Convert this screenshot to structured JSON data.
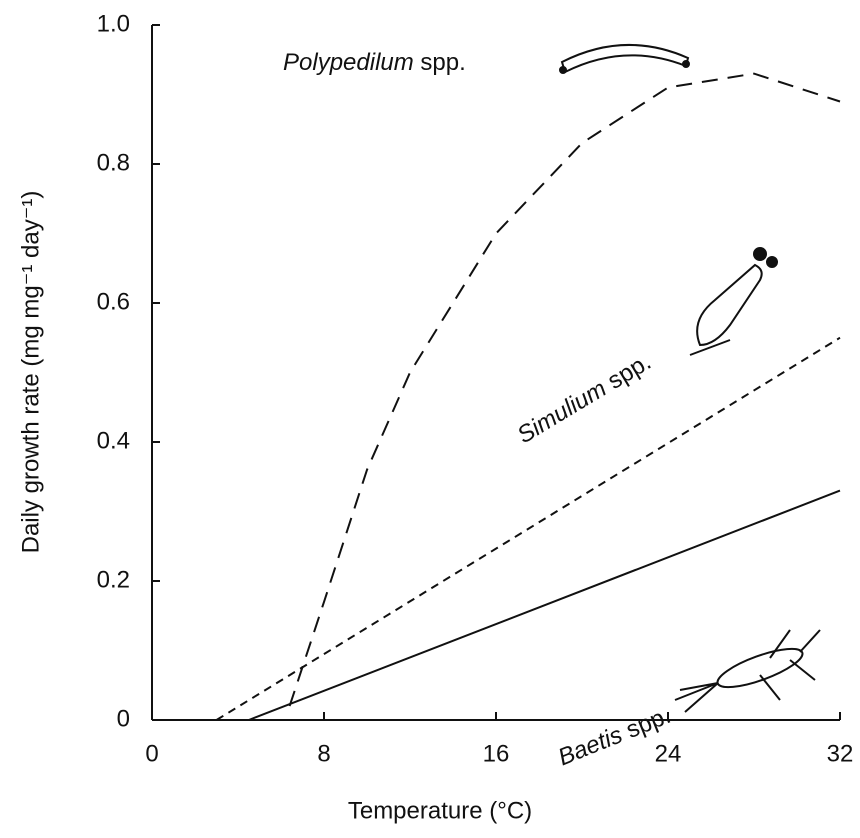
{
  "chart_data": {
    "type": "line",
    "xlabel": "Temperature (°C)",
    "ylabel": "Daily growth rate (mg mg⁻¹ day⁻¹)",
    "xlim": [
      0,
      32
    ],
    "xticks": [
      0,
      8,
      16,
      24,
      32
    ],
    "ylim": [
      0,
      1
    ],
    "yticks": [
      0,
      0.2,
      0.4,
      0.6,
      0.8,
      {
        "value": 1,
        "label": "1.0"
      }
    ],
    "grid": false,
    "series": [
      {
        "name": "Polypedilum spp.",
        "color": "#111111",
        "dash": "long",
        "x": [
          6.4,
          8,
          10,
          12,
          16,
          20,
          24,
          28,
          32
        ],
        "values": [
          0.02,
          0.17,
          0.36,
          0.5,
          0.7,
          0.83,
          0.91,
          0.93,
          0.89
        ]
      },
      {
        "name": "Simulium spp.",
        "color": "#111111",
        "dash": "short",
        "x": [
          3,
          32
        ],
        "values": [
          0,
          0.55
        ]
      },
      {
        "name": "Baetis spp.",
        "color": "#111111",
        "dash": "solid",
        "x": [
          4.5,
          32
        ],
        "values": [
          0,
          0.33
        ]
      }
    ]
  }
}
